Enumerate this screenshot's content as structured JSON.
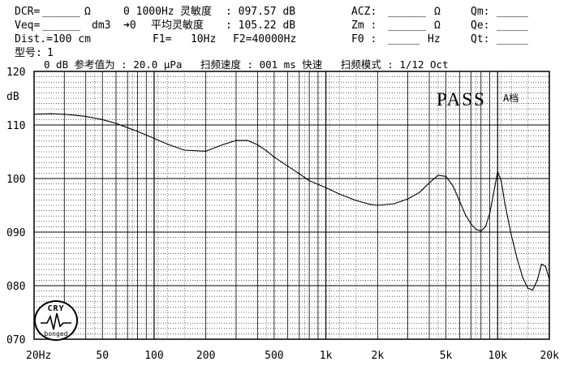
{
  "header": {
    "dcr_label": "DCR=",
    "dcr_unit": "Ω",
    "veq_label": "Veq=",
    "veq_unit": "dm3",
    "dist": "Dist.=100 cm",
    "model_label": "型号:",
    "model_value": "1",
    "sens_freq_prefix": "0 1000Hz",
    "sens_label": "灵敏度",
    "sens_value": ": 097.57 dB",
    "avg_prefix": "➜0",
    "avg_label": "平均灵敏度",
    "avg_value": ": 105.22 dB",
    "f1": "F1=   10Hz",
    "f2": "F2=40000Hz",
    "acz_label": "ACZ:",
    "acz_unit": "Ω",
    "zm_label": "Zm :",
    "zm_unit": "Ω",
    "f0_label": "F0 :",
    "f0_unit": "Hz",
    "qm_label": "Qm:",
    "qe_label": "Qe:",
    "qt_label": "Qt:",
    "ref_line": "0 dB 参考值为 : 20.0 μPa   扫频速度 : 001 ms 快速   扫频模式 : 1/12 Oct"
  },
  "badge": {
    "text": "PASS",
    "sub": "A档"
  },
  "logo": {
    "top": "CRY",
    "bottom": "bonged"
  },
  "chart_data": {
    "type": "line",
    "xscale": "log",
    "xlim": [
      20,
      20000
    ],
    "ylim": [
      70,
      120
    ],
    "ylabel": "dB",
    "yticks": [
      120,
      110,
      100,
      90,
      80,
      70
    ],
    "ytick_labels": [
      "120",
      "110",
      "100",
      "090",
      "080",
      "070"
    ],
    "xticks": [
      20,
      50,
      100,
      200,
      500,
      1000,
      2000,
      5000,
      10000,
      20000
    ],
    "xtick_labels": [
      "20Hz",
      "50",
      "100",
      "200",
      "500",
      "1k",
      "2k",
      "5k",
      "10k",
      "20k"
    ],
    "grid": true,
    "series": [
      {
        "x": [
          20,
          25,
          30,
          35,
          40,
          50,
          60,
          70,
          80,
          100,
          120,
          150,
          200,
          250,
          300,
          350,
          400,
          450,
          500,
          600,
          700,
          800,
          1000,
          1200,
          1500,
          1800,
          2000,
          2500,
          3000,
          3500,
          4000,
          4500,
          5000,
          5500,
          6000,
          6500,
          7000,
          7500,
          8000,
          8500,
          9000,
          9500,
          10000,
          10500,
          11000,
          12000,
          13000,
          14000,
          15000,
          16000,
          17000,
          18000,
          19000,
          20000
        ],
        "y": [
          112,
          112.1,
          112,
          111.8,
          111.6,
          111,
          110.3,
          109.5,
          108.8,
          107.5,
          106.4,
          105.3,
          105.1,
          106.3,
          107.1,
          107.1,
          106.3,
          105.2,
          104.0,
          102.3,
          100.9,
          99.6,
          98.3,
          97.1,
          95.9,
          95.2,
          95.0,
          95.3,
          96.2,
          97.4,
          99.2,
          100.6,
          100.4,
          98.6,
          95.8,
          93.2,
          91.5,
          90.5,
          90.2,
          91.0,
          93.5,
          97.5,
          101.3,
          99.5,
          95.5,
          89.5,
          85.0,
          81.5,
          79.5,
          79.2,
          81.0,
          84.0,
          83.6,
          81.2
        ]
      }
    ]
  },
  "colors": {
    "line": "#000000",
    "grid": "#000000",
    "background": "#ffffff"
  }
}
